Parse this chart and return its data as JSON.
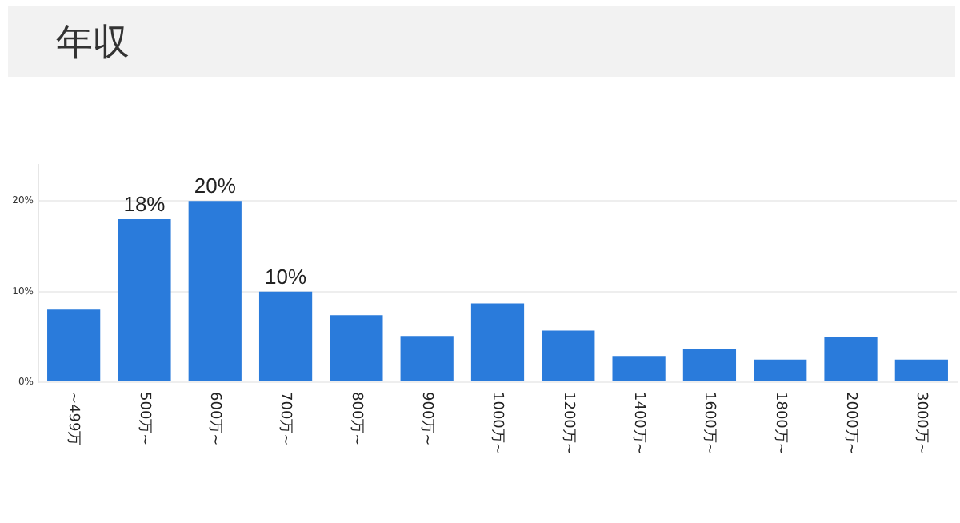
{
  "chart_data": {
    "type": "bar",
    "title": "年収",
    "categories": [
      "~499万",
      "500万~",
      "600万~",
      "700万~",
      "800万~",
      "900万~",
      "1000万~",
      "1200万~",
      "1400万~",
      "1600万~",
      "1800万~",
      "2000万~",
      "3000万~"
    ],
    "values": [
      8,
      18,
      20,
      10,
      7.4,
      5.1,
      8.7,
      5.7,
      2.9,
      3.7,
      2.5,
      5,
      2.5
    ],
    "value_labels": [
      null,
      "18%",
      "20%",
      "10%",
      null,
      null,
      null,
      null,
      null,
      null,
      null,
      null,
      null
    ],
    "color": "#2a7bdb",
    "ylim": [
      0,
      24
    ],
    "yticks": [
      {
        "value": 0,
        "label": "0%"
      },
      {
        "value": 10,
        "label": "10%"
      },
      {
        "value": 20,
        "label": "20%"
      }
    ],
    "grid": "y"
  }
}
